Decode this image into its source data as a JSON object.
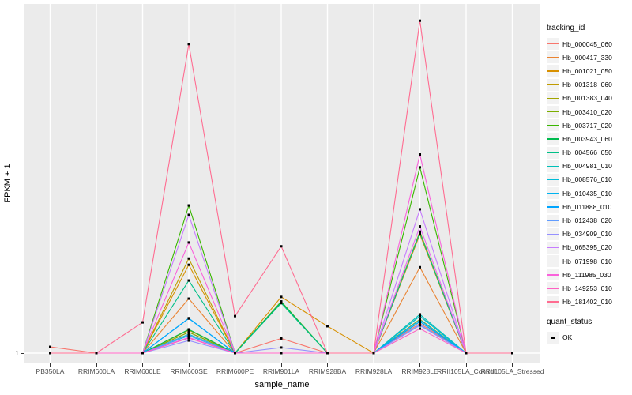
{
  "figure": {
    "background": "#FFFFFF",
    "panel_background": "#EBEBEB",
    "grid_color": "#FFFFFF",
    "legend_key_background": "#F2F2F2",
    "axis_text_color": "#4D4D4D",
    "point_color": "#000000"
  },
  "axes": {
    "x_title": "sample_name",
    "y_title": "FPKM + 1",
    "y_tick_label": "1"
  },
  "legend": {
    "tracking_title": "tracking_id",
    "quant_title": "quant_status",
    "quant_label": "OK"
  },
  "chart_data": {
    "type": "line",
    "title": "",
    "xlabel": "sample_name",
    "ylabel": "FPKM + 1",
    "y_axis_note": "log-style axis; the only labeled tick is '1' at the baseline",
    "values_unit": "fraction of panel height above the y = 1 baseline (estimated from pixels; no other ticks shown)",
    "grid": "vertical white gridline at each sample; horizontal white gridline at y = 1",
    "legend_position": "right",
    "point_marker": "small black square on every data point (quant_status = OK)",
    "categories": [
      "PB350LA",
      "RRIM600LA",
      "RRIM600LE",
      "RRIM600SE",
      "RRIM600PE",
      "RRIM901LA",
      "RRIM928BA",
      "RRIM928LA",
      "RRIM928LE",
      "RRII105LA_Control",
      "RRII105LA_Stressed"
    ],
    "series": [
      {
        "name": "Hb_000045_060",
        "color": "#F8766D",
        "values": [
          0.018,
          0,
          0,
          0.06,
          0,
          0.042,
          0,
          0,
          0.085,
          0,
          0
        ]
      },
      {
        "name": "Hb_000417_330",
        "color": "#EA8331",
        "values": [
          0,
          0,
          0,
          0.156,
          0,
          0,
          0,
          0,
          0.246,
          0,
          0
        ]
      },
      {
        "name": "Hb_001021_050",
        "color": "#D89000",
        "values": [
          0,
          0,
          0,
          0.253,
          0,
          0.161,
          0.077,
          0,
          0.34,
          0,
          0
        ]
      },
      {
        "name": "Hb_001318_060",
        "color": "#C09B00",
        "values": [
          0,
          0,
          0,
          0.271,
          0,
          0.148,
          0,
          0,
          0.348,
          0,
          0
        ]
      },
      {
        "name": "Hb_001383_040",
        "color": "#A3A500",
        "values": [
          0,
          0,
          0,
          0.066,
          0,
          0,
          0,
          0,
          0.097,
          0,
          0
        ]
      },
      {
        "name": "Hb_003410_020",
        "color": "#7CAE00",
        "values": [
          0,
          0,
          0,
          0.06,
          0,
          0.145,
          0,
          0,
          0.09,
          0,
          0
        ]
      },
      {
        "name": "Hb_003717_020",
        "color": "#39B600",
        "values": [
          0,
          0,
          0,
          0.423,
          0,
          0.147,
          0,
          0,
          0.532,
          0,
          0
        ]
      },
      {
        "name": "Hb_003943_060",
        "color": "#00BB4E",
        "values": [
          0,
          0,
          0,
          0.068,
          0,
          0.147,
          0,
          0,
          0.106,
          0,
          0
        ]
      },
      {
        "name": "Hb_004566_050",
        "color": "#00C087",
        "values": [
          0,
          0,
          0,
          0.208,
          0,
          0.143,
          0,
          0,
          0.345,
          0,
          0
        ]
      },
      {
        "name": "Hb_004981_010",
        "color": "#00C0B8",
        "values": [
          0,
          0,
          0,
          0.054,
          0,
          0,
          0,
          0,
          0.111,
          0,
          0
        ]
      },
      {
        "name": "Hb_008576_010",
        "color": "#00BCD8",
        "values": [
          0,
          0,
          0,
          0.05,
          0,
          0,
          0,
          0,
          0.106,
          0,
          0
        ]
      },
      {
        "name": "Hb_010435_010",
        "color": "#00B3F0",
        "values": [
          0,
          0,
          0,
          0.1,
          0,
          0,
          0,
          0,
          0.095,
          0,
          0
        ]
      },
      {
        "name": "Hb_011888_010",
        "color": "#00A5FF",
        "values": [
          0,
          0,
          0,
          0.099,
          0,
          0,
          0,
          0,
          0.09,
          0,
          0
        ]
      },
      {
        "name": "Hb_012438_020",
        "color": "#619CFF",
        "values": [
          0,
          0,
          0,
          0.052,
          0,
          0,
          0,
          0,
          0.081,
          0,
          0
        ]
      },
      {
        "name": "Hb_034909_010",
        "color": "#9590FF",
        "values": [
          0,
          0,
          0,
          0.036,
          0,
          0.016,
          0,
          0,
          0.079,
          0,
          0
        ]
      },
      {
        "name": "Hb_065395_020",
        "color": "#C77CFF",
        "values": [
          0,
          0,
          0,
          0.396,
          0,
          0,
          0,
          0,
          0.412,
          0,
          0
        ]
      },
      {
        "name": "Hb_071998_010",
        "color": "#E76BF3",
        "values": [
          0,
          0,
          0,
          0.045,
          0,
          0,
          0,
          0,
          0.363,
          0,
          0
        ]
      },
      {
        "name": "Hb_111985_030",
        "color": "#FA62DB",
        "values": [
          0,
          0,
          0,
          0.317,
          0,
          0,
          0,
          0,
          0.569,
          0,
          0
        ]
      },
      {
        "name": "Hb_149253_010",
        "color": "#FF61C3",
        "values": [
          0,
          0,
          0,
          0.043,
          0,
          0,
          0,
          0,
          0.07,
          0,
          0
        ]
      },
      {
        "name": "Hb_181402_010",
        "color": "#FF6C91",
        "values": [
          0,
          0,
          0.088,
          0.885,
          0.106,
          0.306,
          0,
          0,
          0.952,
          0,
          0
        ]
      }
    ],
    "quant_status_all": "OK"
  }
}
